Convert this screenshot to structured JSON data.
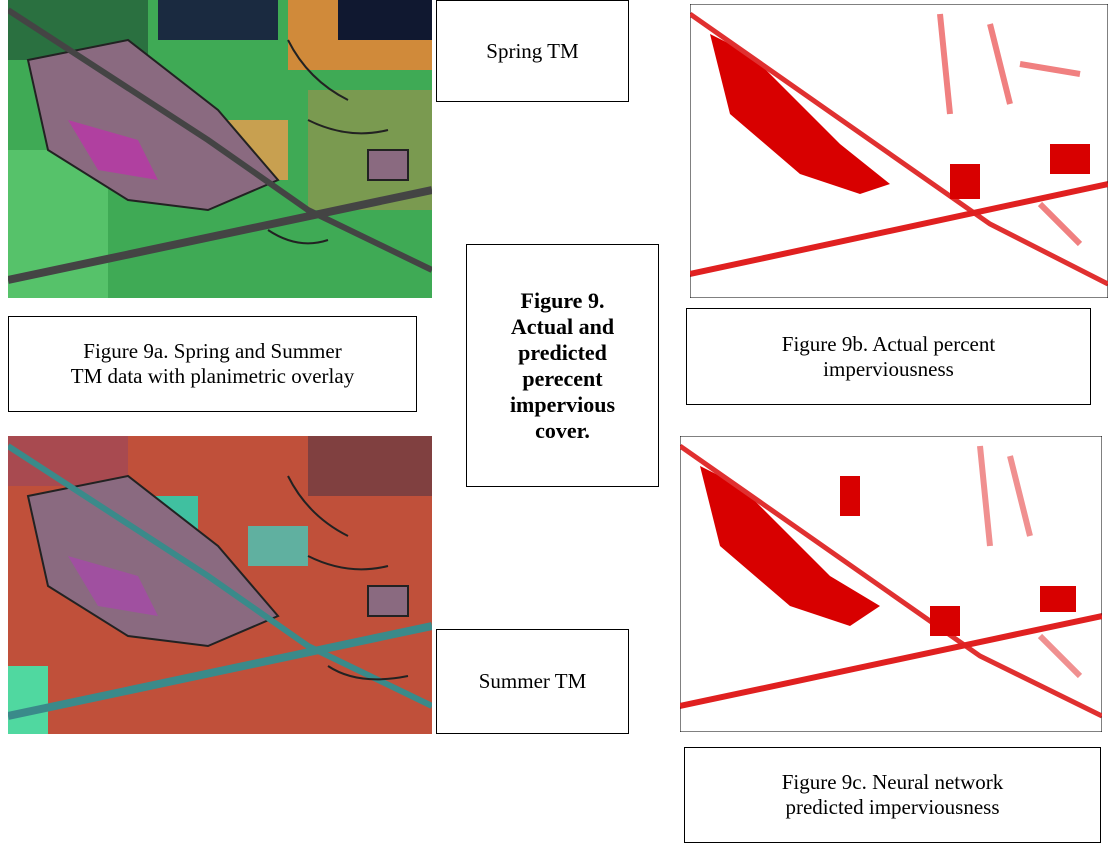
{
  "spring_box": {
    "label": "Spring TM"
  },
  "summer_box": {
    "label": "Summer TM"
  },
  "center_box": {
    "lines": [
      "Figure 9.",
      "Actual and",
      "predicted",
      "perecent",
      "impervious",
      "cover."
    ]
  },
  "caption_9a": {
    "lines": [
      "Figure 9a. Spring and Summer",
      "TM data with planimetric overlay"
    ]
  },
  "caption_9b": {
    "lines": [
      "Figure 9b. Actual percent",
      "imperviousness"
    ]
  },
  "caption_9c": {
    "lines": [
      "Figure 9c. Neural network",
      "predicted imperviousness"
    ]
  }
}
